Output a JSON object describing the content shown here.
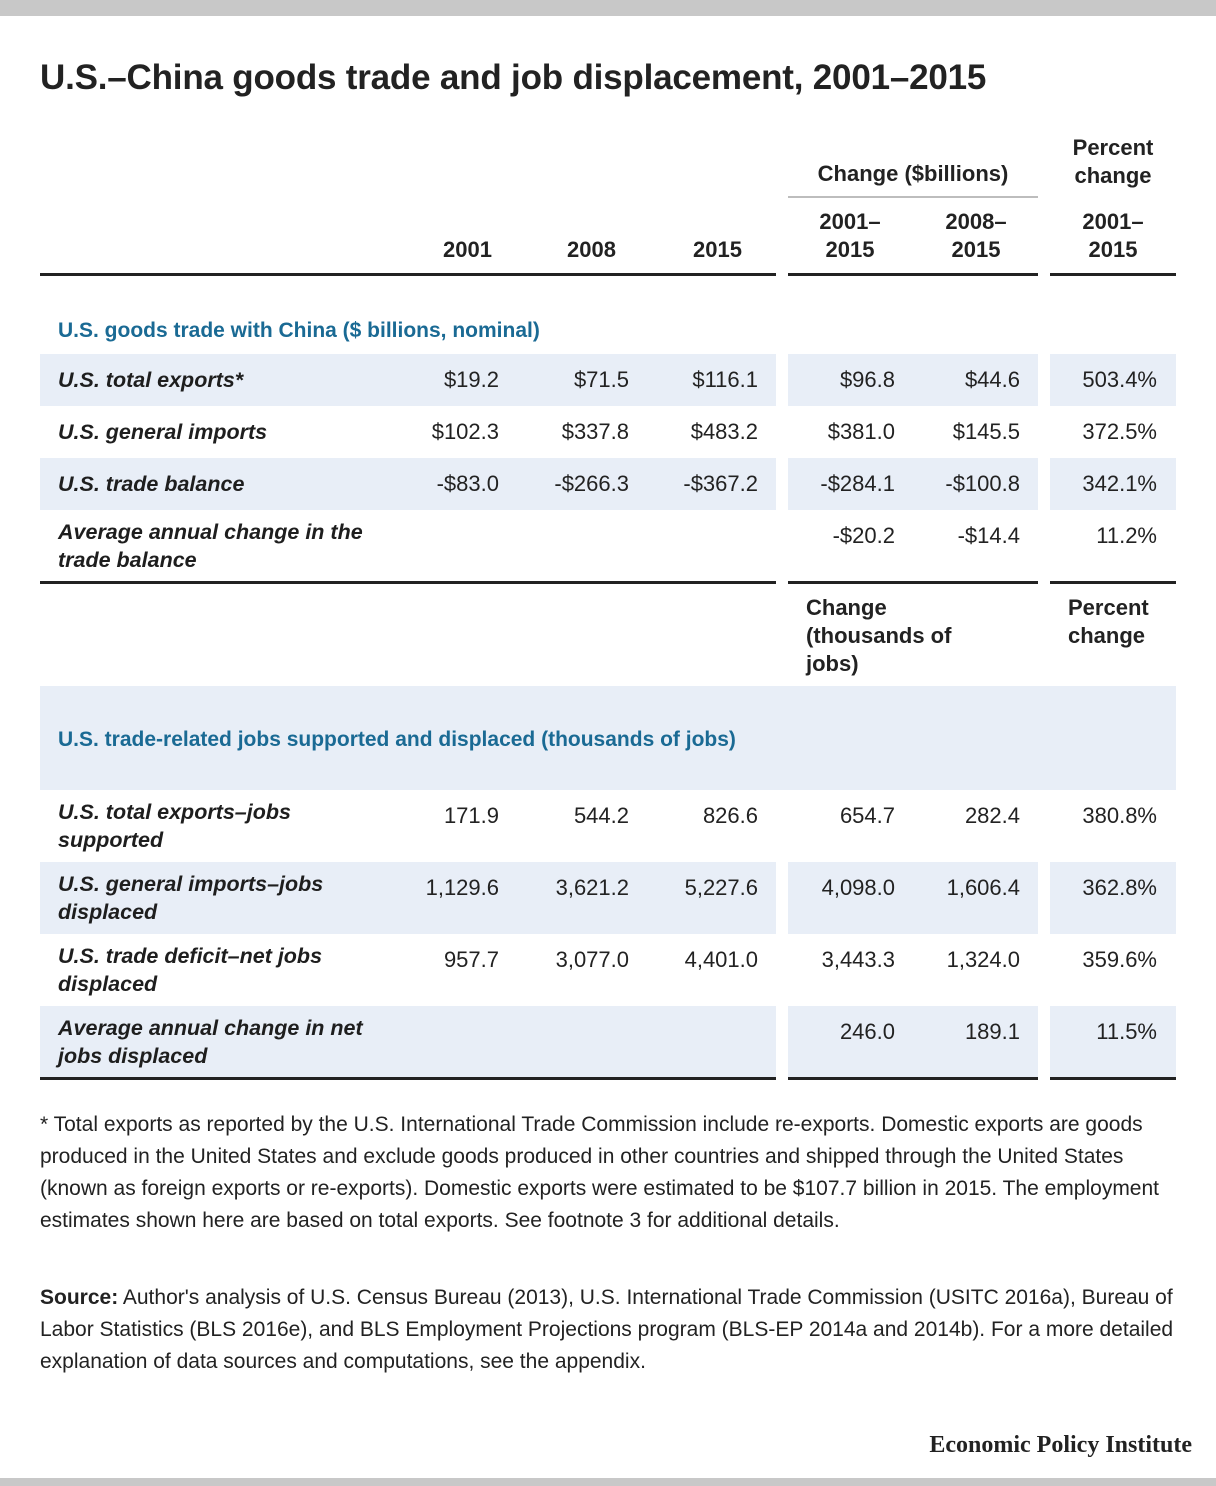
{
  "title": "U.S.–China goods trade and job displacement, 2001–2015",
  "header": {
    "change_group": "Change ($billions)",
    "percent_group": "Percent change",
    "col_2001": "2001",
    "col_2008": "2008",
    "col_2015": "2015",
    "col_chg1_l1": "2001–",
    "col_chg1_l2": "2015",
    "col_chg2_l1": "2008–",
    "col_chg2_l2": "2015",
    "col_pct_l1": "2001–",
    "col_pct_l2": "2015"
  },
  "section1": {
    "heading": "U.S. goods trade with China ($ billions, nominal)",
    "rows": [
      {
        "label": "U.S. total exports*",
        "v2001": "$19.2",
        "v2008": "$71.5",
        "v2015": "$116.1",
        "chg1": "$96.8",
        "chg2": "$44.6",
        "pct": "503.4%"
      },
      {
        "label": "U.S. general imports",
        "v2001": "$102.3",
        "v2008": "$337.8",
        "v2015": "$483.2",
        "chg1": "$381.0",
        "chg2": "$145.5",
        "pct": "372.5%"
      },
      {
        "label": "U.S. trade balance",
        "v2001": "-$83.0",
        "v2008": "-$266.3",
        "v2015": "-$367.2",
        "chg1": "-$284.1",
        "chg2": "-$100.8",
        "pct": "342.1%"
      },
      {
        "label": "Average annual change in the trade balance",
        "v2001": "",
        "v2008": "",
        "v2015": "",
        "chg1": "-$20.2",
        "chg2": "-$14.4",
        "pct": "11.2%"
      }
    ]
  },
  "subheader": {
    "change_group": "Change (thousands of jobs)",
    "percent_group": "Percent change"
  },
  "section2": {
    "heading": "U.S. trade-related jobs supported and displaced (thousands of jobs)",
    "rows": [
      {
        "label": "U.S. total exports–jobs supported",
        "v2001": "171.9",
        "v2008": "544.2",
        "v2015": "826.6",
        "chg1": "654.7",
        "chg2": "282.4",
        "pct": "380.8%"
      },
      {
        "label": "U.S. general imports–jobs displaced",
        "v2001": "1,129.6",
        "v2008": "3,621.2",
        "v2015": "5,227.6",
        "chg1": "4,098.0",
        "chg2": "1,606.4",
        "pct": "362.8%"
      },
      {
        "label": "U.S. trade deficit–net jobs displaced",
        "v2001": "957.7",
        "v2008": "3,077.0",
        "v2015": "4,401.0",
        "chg1": "3,443.3",
        "chg2": "1,324.0",
        "pct": "359.6%"
      },
      {
        "label": "Average annual change in net jobs displaced",
        "v2001": "",
        "v2008": "",
        "v2015": "",
        "chg1": "246.0",
        "chg2": "189.1",
        "pct": "11.5%"
      }
    ]
  },
  "footnote": "* Total exports as reported by the U.S. International Trade Commission include re-exports. Domestic exports are goods produced in the United States and exclude goods produced in other countries and shipped through the United States (known as foreign exports or re-exports). Domestic exports were estimated to be $107.7 billion in 2015. The employment estimates shown here are based on total exports. See footnote 3 for additional details.",
  "source_label": "Source:",
  "source_text": " Author's analysis of U.S. Census Bureau (2013), U.S. International Trade Commission (USITC 2016a), Bureau of Labor Statistics (BLS 2016e), and BLS Employment Projections program (BLS-EP 2014a and 2014b). For a more detailed explanation of data sources and computations, see the appendix.",
  "publisher": "Economic Policy Institute",
  "chart_data": {
    "type": "table",
    "title": "U.S.–China goods trade and job displacement, 2001–2015",
    "columns": [
      "2001",
      "2008",
      "2015",
      "Change 2001–2015",
      "Change 2008–2015",
      "Percent change 2001–2015"
    ],
    "tables": [
      {
        "name": "U.S. goods trade with China ($ billions, nominal)",
        "rows": [
          {
            "label": "U.S. total exports*",
            "values": [
              19.2,
              71.5,
              116.1,
              96.8,
              44.6,
              503.4
            ]
          },
          {
            "label": "U.S. general imports",
            "values": [
              102.3,
              337.8,
              483.2,
              381.0,
              145.5,
              372.5
            ]
          },
          {
            "label": "U.S. trade balance",
            "values": [
              -83.0,
              -266.3,
              -367.2,
              -284.1,
              -100.8,
              342.1
            ]
          },
          {
            "label": "Average annual change in the trade balance",
            "values": [
              null,
              null,
              null,
              -20.2,
              -14.4,
              11.2
            ]
          }
        ]
      },
      {
        "name": "U.S. trade-related jobs supported and displaced (thousands of jobs)",
        "rows": [
          {
            "label": "U.S. total exports–jobs supported",
            "values": [
              171.9,
              544.2,
              826.6,
              654.7,
              282.4,
              380.8
            ]
          },
          {
            "label": "U.S. general imports–jobs displaced",
            "values": [
              1129.6,
              3621.2,
              5227.6,
              4098.0,
              1606.4,
              362.8
            ]
          },
          {
            "label": "U.S. trade deficit–net jobs displaced",
            "values": [
              957.7,
              3077.0,
              4401.0,
              3443.3,
              1324.0,
              359.6
            ]
          },
          {
            "label": "Average annual change in net jobs displaced",
            "values": [
              null,
              null,
              null,
              246.0,
              189.1,
              11.5
            ]
          }
        ]
      }
    ]
  }
}
